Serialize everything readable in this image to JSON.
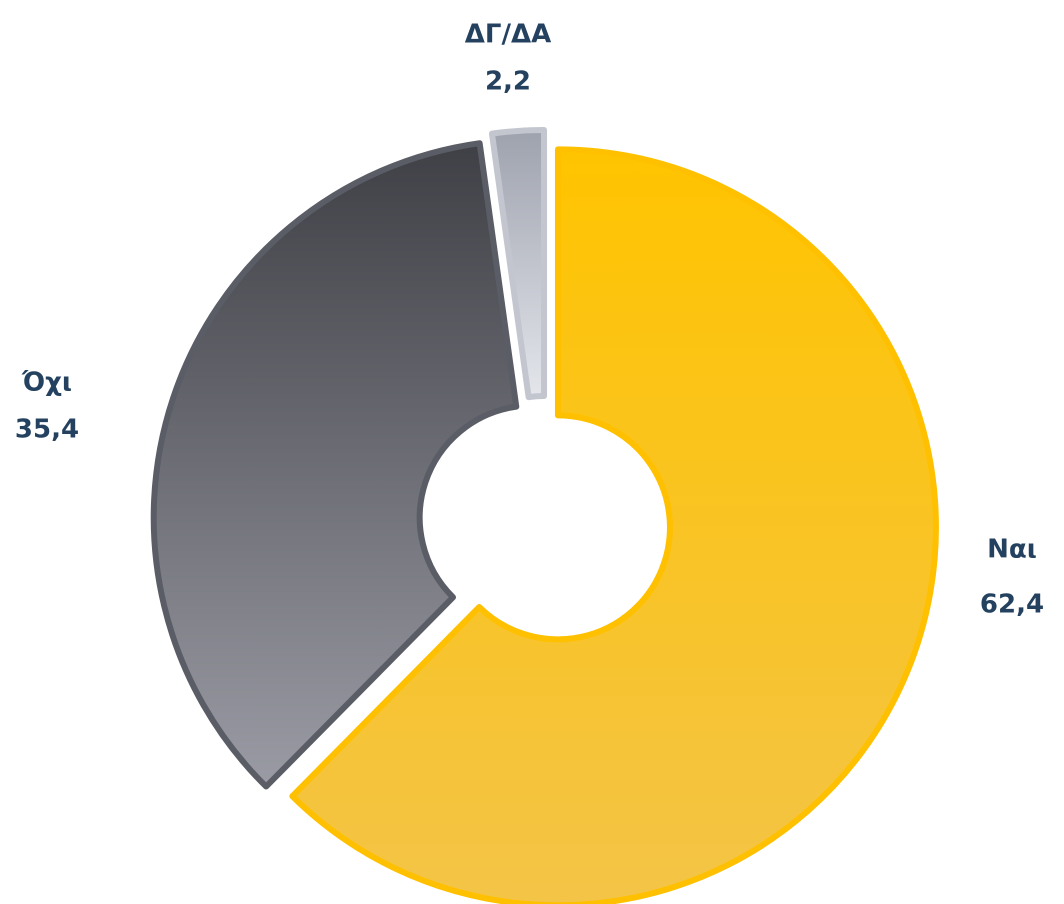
{
  "chart_data": {
    "type": "donut",
    "categories": [
      "Ναι",
      "Όχι",
      "ΔΓ/ΔΑ"
    ],
    "values": [
      62.4,
      35.4,
      2.2
    ],
    "value_labels": [
      "62,4",
      "35,4",
      "2,2"
    ],
    "colors": [
      "#ffc000",
      "#5b5d66",
      "#c3c6ce"
    ]
  }
}
